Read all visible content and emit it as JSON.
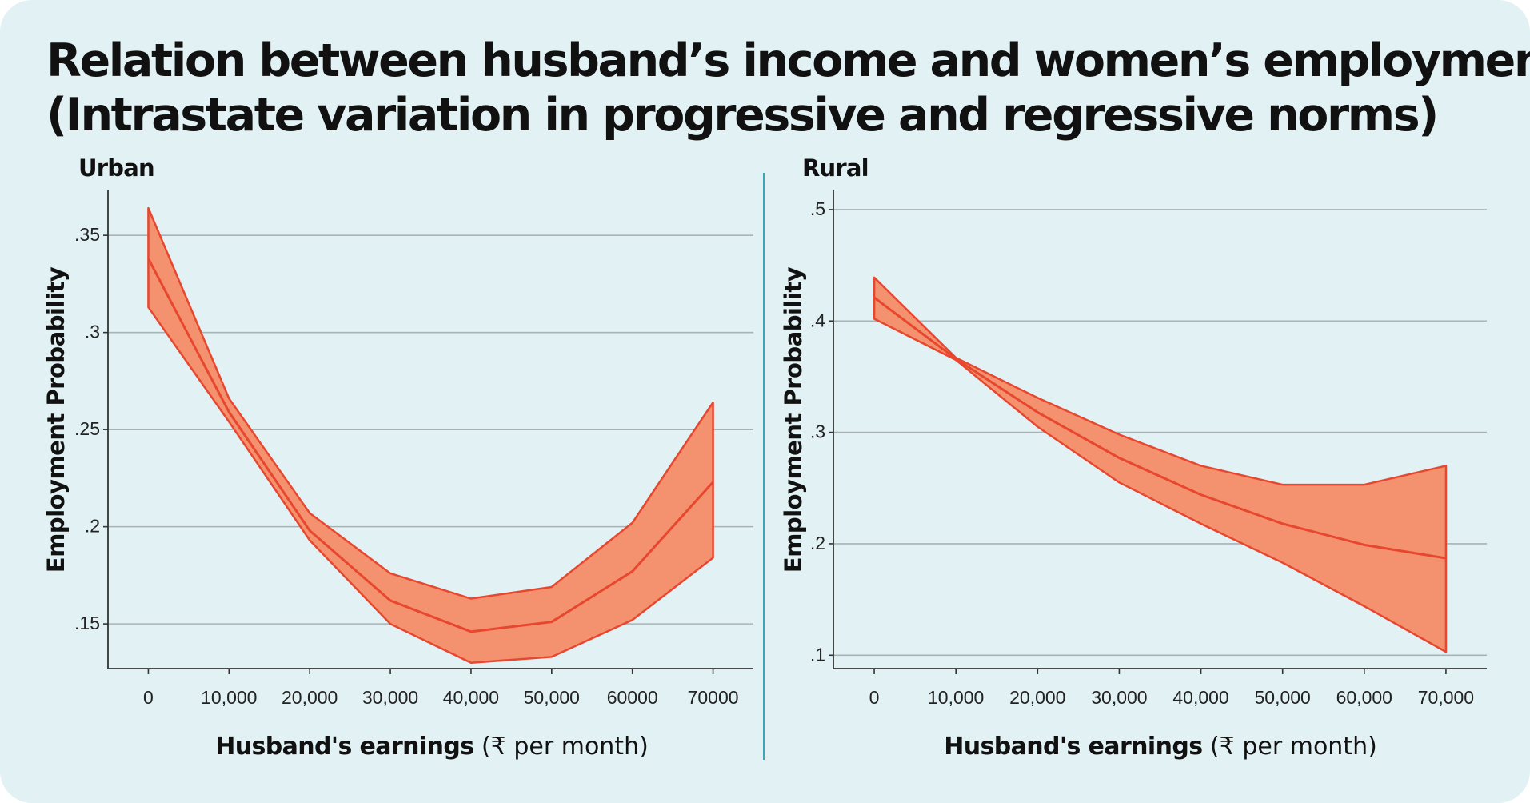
{
  "title_lines": [
    "Relation between husband’s income and women’s employment",
    "(Intrastate variation in progressive and regressive norms)"
  ],
  "colors": {
    "background": "#e1f1f4",
    "band_fill": "#f4916f",
    "line": "#e8472f",
    "gridline": "#a9b3b6",
    "divider": "#3aa7b4"
  },
  "chart_data": [
    {
      "label": "Urban",
      "type": "line",
      "band": "confidence interval",
      "ylabel": "Employment Probability",
      "xlabel_bold": "Husband's earnings",
      "xlabel_rest": " (₹ per month)",
      "x": [
        0,
        10000,
        20000,
        30000,
        40000,
        50000,
        60000,
        70000
      ],
      "x_tick_labels": [
        "0",
        "10,000",
        "20,000",
        "30,000",
        "40,000",
        "50,000",
        "60000",
        "70000"
      ],
      "y_ticks": [
        0.15,
        0.2,
        0.25,
        0.3,
        0.35
      ],
      "y_tick_labels": [
        ".15",
        ".2",
        ".25",
        ".3",
        ".35"
      ],
      "xlim": [
        -5000,
        75000
      ],
      "ylim": [
        0.127,
        0.369
      ],
      "grid": true,
      "series": [
        {
          "values": [
            0.338,
            0.259,
            0.198,
            0.162,
            0.146,
            0.151,
            0.177,
            0.223
          ],
          "lower": [
            0.313,
            0.254,
            0.193,
            0.15,
            0.13,
            0.133,
            0.152,
            0.184
          ],
          "upper": [
            0.364,
            0.266,
            0.207,
            0.176,
            0.163,
            0.169,
            0.202,
            0.264
          ]
        }
      ]
    },
    {
      "label": "Rural",
      "type": "line",
      "band": "confidence interval",
      "ylabel": "Employment Probability",
      "xlabel_bold": "Husband's earnings",
      "xlabel_rest": " (₹ per month)",
      "x": [
        0,
        10000,
        20000,
        30000,
        40000,
        50000,
        60000,
        70000
      ],
      "x_tick_labels": [
        "0",
        "10,000",
        "20,000",
        "30,000",
        "40,000",
        "50,000",
        "60,000",
        "70,000"
      ],
      "y_ticks": [
        0.1,
        0.2,
        0.3,
        0.4,
        0.5
      ],
      "y_tick_labels": [
        ".1",
        ".2",
        ".3",
        ".4",
        ".5"
      ],
      "xlim": [
        -5000,
        75000
      ],
      "ylim": [
        0.088,
        0.51
      ],
      "grid": true,
      "series": [
        {
          "values": [
            0.421,
            0.366,
            0.318,
            0.277,
            0.244,
            0.218,
            0.199,
            0.187
          ],
          "lower": [
            0.402,
            0.365,
            0.305,
            0.255,
            0.218,
            0.183,
            0.144,
            0.103
          ],
          "upper": [
            0.439,
            0.367,
            0.331,
            0.298,
            0.27,
            0.253,
            0.253,
            0.27
          ]
        }
      ]
    }
  ]
}
